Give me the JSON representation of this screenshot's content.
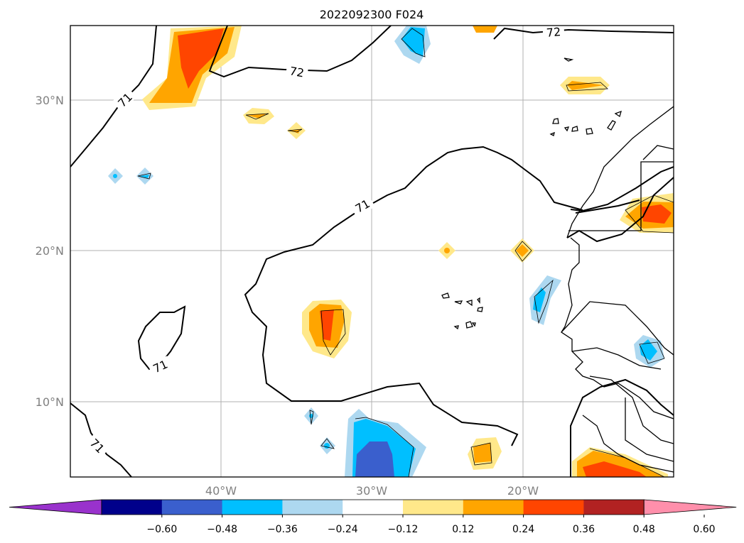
{
  "title": "2022092300 F024",
  "lat_labels": [
    "30°N",
    "20°N",
    "10°N"
  ],
  "lon_labels": [
    "40°W",
    "30°W",
    "20°W"
  ],
  "contour_labels": [
    "71",
    "71",
    "71",
    "71",
    "72",
    "72"
  ],
  "colorbar": {
    "ticks": [
      "−0.60",
      "−0.48",
      "−0.36",
      "−0.24",
      "−0.12",
      "0.12",
      "0.24",
      "0.36",
      "0.48",
      "0.60"
    ],
    "colors": [
      "#9932cc",
      "#00008b",
      "#3a5fcd",
      "#00bfff",
      "#add8f0",
      "#ffffff",
      "#ffe88a",
      "#ffa500",
      "#ff4500",
      "#b22222",
      "#ff8fab"
    ]
  }
}
